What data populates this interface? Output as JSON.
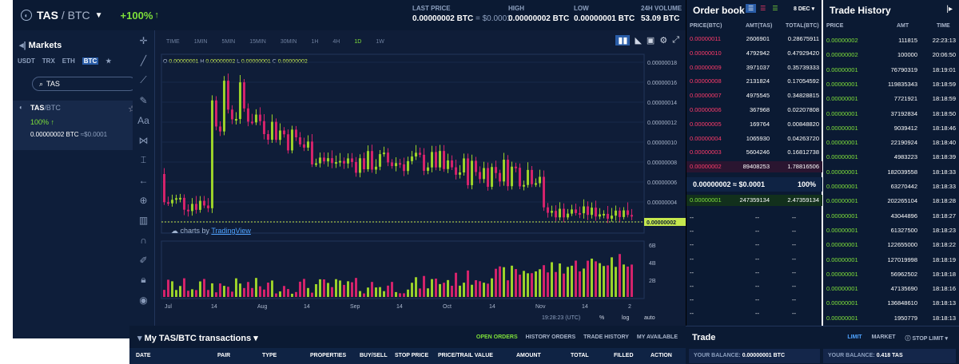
{
  "header": {
    "pair_base": "TAS",
    "pair_quote": "/ BTC",
    "change": "+100%",
    "stats": [
      {
        "label": "LAST PRICE",
        "value": "0.00000002 BTC",
        "sub": "= $0.0001"
      },
      {
        "label": "HIGH",
        "value": "0.00000002 BTC",
        "sub": ""
      },
      {
        "label": "LOW",
        "value": "0.00000001 BTC",
        "sub": ""
      },
      {
        "label": "24H VOLUME",
        "value": "53.09 BTC",
        "sub": ""
      }
    ]
  },
  "markets": {
    "title": "Markets",
    "tabs": [
      "USDT",
      "TRX",
      "ETH",
      "BTC",
      "★"
    ],
    "active_tab": "BTC",
    "search_value": "TAS",
    "item": {
      "base": "TAS",
      "quote": "/BTC",
      "change": "100%",
      "price": "0.00000002 BTC",
      "usd": "≈$0.0001"
    }
  },
  "chart": {
    "timeframes": [
      "TIME",
      "1MIN",
      "5MIN",
      "15MIN",
      "30MIN",
      "1H",
      "4H",
      "1D",
      "1W"
    ],
    "active_timeframe": "1D",
    "ohlc": {
      "o": "0.00000001",
      "h": "0.00000002",
      "l": "0.00000001",
      "c": "0.00000002"
    },
    "price_ticks": [
      "0.00000018",
      "0.00000016",
      "0.00000014",
      "0.00000012",
      "0.00000010",
      "0.00000008",
      "0.00000006",
      "0.00000004",
      "0.00000002"
    ],
    "last_label": "0.00000002",
    "volume_ticks": [
      "6B",
      "4B",
      "2B"
    ],
    "x_ticks": [
      "Jul",
      "14",
      "Aug",
      "14",
      "Sep",
      "14",
      "Oct",
      "14",
      "Nov",
      "14",
      "2"
    ],
    "time": "19:28:23 (UTC)",
    "bottom_opts": [
      "%",
      "log",
      "auto"
    ],
    "tv_text": "charts by",
    "tv_brand": "TradingView",
    "colors": {
      "up": "#9bd12a",
      "down": "#d3236b"
    }
  },
  "orderbook": {
    "title": "Order book",
    "decimals": "8 DEC",
    "headers": [
      "PRICE(BTC)",
      "AMT(TAS)",
      "TOTAL(BTC)"
    ],
    "asks": [
      [
        "0.00000011",
        "2606901",
        "0.28675911"
      ],
      [
        "0.00000010",
        "4792942",
        "0.47929420"
      ],
      [
        "0.00000009",
        "3971037",
        "0.35739333"
      ],
      [
        "0.00000008",
        "2131824",
        "0.17054592"
      ],
      [
        "0.00000007",
        "4975545",
        "0.34828815"
      ],
      [
        "0.00000006",
        "367968",
        "0.02207808"
      ],
      [
        "0.00000005",
        "169764",
        "0.00848820"
      ],
      [
        "0.00000004",
        "1065930",
        "0.04263720"
      ],
      [
        "0.00000003",
        "5604246",
        "0.16812738"
      ],
      [
        "0.00000002",
        "89408253",
        "1.78816506"
      ]
    ],
    "mid_price": "0.00000002 ≈ $0.0001",
    "mid_pct": "100%",
    "bids": [
      [
        "0.00000001",
        "247359134",
        "2.47359134"
      ]
    ],
    "empty": "--"
  },
  "trades": {
    "title": "Trade History",
    "headers": [
      "PRICE",
      "AMT",
      "TIME"
    ],
    "rows": [
      [
        "0.00000002",
        "111815",
        "22:23:13"
      ],
      [
        "0.00000002",
        "100000",
        "20:06:50"
      ],
      [
        "0.00000001",
        "76790319",
        "18:19:01"
      ],
      [
        "0.00000001",
        "119835343",
        "18:18:59"
      ],
      [
        "0.00000001",
        "7721921",
        "18:18:59"
      ],
      [
        "0.00000001",
        "37192834",
        "18:18:50"
      ],
      [
        "0.00000001",
        "9039412",
        "18:18:46"
      ],
      [
        "0.00000001",
        "22190924",
        "18:18:40"
      ],
      [
        "0.00000001",
        "4983223",
        "18:18:39"
      ],
      [
        "0.00000001",
        "182039558",
        "18:18:33"
      ],
      [
        "0.00000001",
        "63270442",
        "18:18:33"
      ],
      [
        "0.00000001",
        "202265104",
        "18:18:28"
      ],
      [
        "0.00000001",
        "43044896",
        "18:18:27"
      ],
      [
        "0.00000001",
        "61327500",
        "18:18:23"
      ],
      [
        "0.00000001",
        "122655000",
        "18:18:22"
      ],
      [
        "0.00000001",
        "127019998",
        "18:18:19"
      ],
      [
        "0.00000001",
        "56962502",
        "18:18:18"
      ],
      [
        "0.00000001",
        "47135690",
        "18:18:16"
      ],
      [
        "0.00000001",
        "136848610",
        "18:18:13"
      ],
      [
        "0.00000001",
        "1950779",
        "18:18:13"
      ]
    ]
  },
  "transactions": {
    "title": "My TAS/BTC transactions",
    "tabs": [
      "OPEN ORDERS",
      "HISTORY ORDERS",
      "TRADE HISTORY",
      "MY AVAILABLE"
    ],
    "columns": [
      "DATE",
      "PAIR",
      "TYPE",
      "PROPERTIES",
      "BUY/SELL",
      "STOP PRICE",
      "PRICE/TRAIL VALUE",
      "AMOUNT",
      "TOTAL",
      "FILLED",
      "ACTION"
    ]
  },
  "trade": {
    "title": "Trade",
    "tabs": [
      "LIMIT",
      "MARKET",
      "STOP LIMIT"
    ],
    "balance_btc_label": "YOUR BALANCE:",
    "balance_btc": "0.00000001 BTC",
    "balance_tas_label": "YOUR BALANCE:",
    "balance_tas": "0.418 TAS"
  }
}
